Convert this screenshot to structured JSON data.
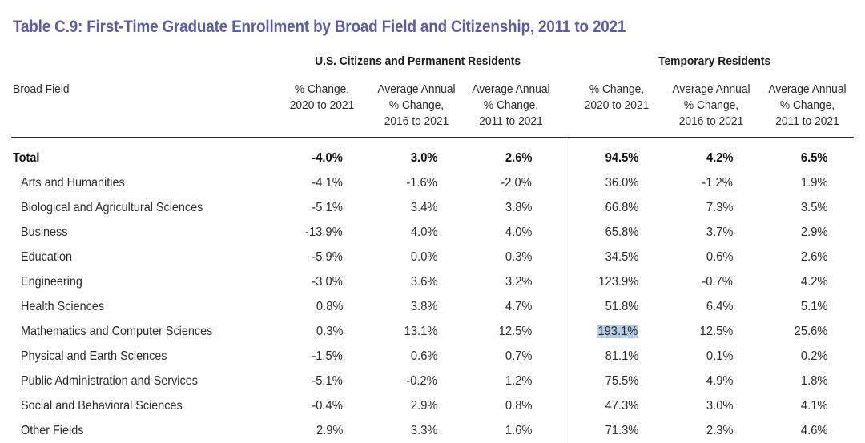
{
  "title": "Table C.9: First-Time Graduate Enrollment by Broad Field and Citizenship, 2011 to 2021",
  "groups": {
    "us": "U.S. Citizens and Permanent Residents",
    "temp": "Temporary Residents"
  },
  "headers": {
    "field": "Broad Field",
    "c1": "% Change,\n2020 to 2021",
    "c2": "Average Annual\n% Change,\n2016 to 2021",
    "c3": "Average Annual\n% Change,\n2011 to 2021",
    "c4": "% Change,\n2020 to 2021",
    "c5": "Average Annual\n% Change,\n2016 to 2021",
    "c6": "Average Annual\n% Change,\n2011 to 2021"
  },
  "rows": [
    {
      "label": "Total",
      "v": [
        "-4.0%",
        "3.0%",
        "2.6%",
        "94.5%",
        "4.2%",
        "6.5%"
      ]
    },
    {
      "label": "Arts and Humanities",
      "v": [
        "-4.1%",
        "-1.6%",
        "-2.0%",
        "36.0%",
        "-1.2%",
        "1.9%"
      ]
    },
    {
      "label": "Biological and Agricultural Sciences",
      "v": [
        "-5.1%",
        "3.4%",
        "3.8%",
        "66.8%",
        "7.3%",
        "3.5%"
      ]
    },
    {
      "label": "Business",
      "v": [
        "-13.9%",
        "4.0%",
        "4.0%",
        "65.8%",
        "3.7%",
        "2.9%"
      ]
    },
    {
      "label": "Education",
      "v": [
        "-5.9%",
        "0.0%",
        "0.3%",
        "34.5%",
        "0.6%",
        "2.6%"
      ]
    },
    {
      "label": "Engineering",
      "v": [
        "-3.0%",
        "3.6%",
        "3.2%",
        "123.9%",
        "-0.7%",
        "4.2%"
      ]
    },
    {
      "label": "Health Sciences",
      "v": [
        "0.8%",
        "3.8%",
        "4.7%",
        "51.8%",
        "6.4%",
        "5.1%"
      ]
    },
    {
      "label": "Mathematics and Computer Sciences",
      "v": [
        "0.3%",
        "13.1%",
        "12.5%",
        "193.1%",
        "12.5%",
        "25.6%"
      ]
    },
    {
      "label": "Physical and Earth Sciences",
      "v": [
        "-1.5%",
        "0.6%",
        "0.7%",
        "81.1%",
        "0.1%",
        "0.2%"
      ]
    },
    {
      "label": "Public Administration and Services",
      "v": [
        "-5.1%",
        "-0.2%",
        "1.2%",
        "75.5%",
        "4.9%",
        "1.8%"
      ]
    },
    {
      "label": "Social and Behavioral Sciences",
      "v": [
        "-0.4%",
        "2.9%",
        "0.8%",
        "47.3%",
        "3.0%",
        "4.1%"
      ]
    },
    {
      "label": "Other Fields",
      "v": [
        "2.9%",
        "3.3%",
        "1.6%",
        "71.3%",
        "2.3%",
        "4.6%"
      ]
    }
  ],
  "highlight": {
    "row": 7,
    "col": 3,
    "color": "#b7cde3"
  }
}
